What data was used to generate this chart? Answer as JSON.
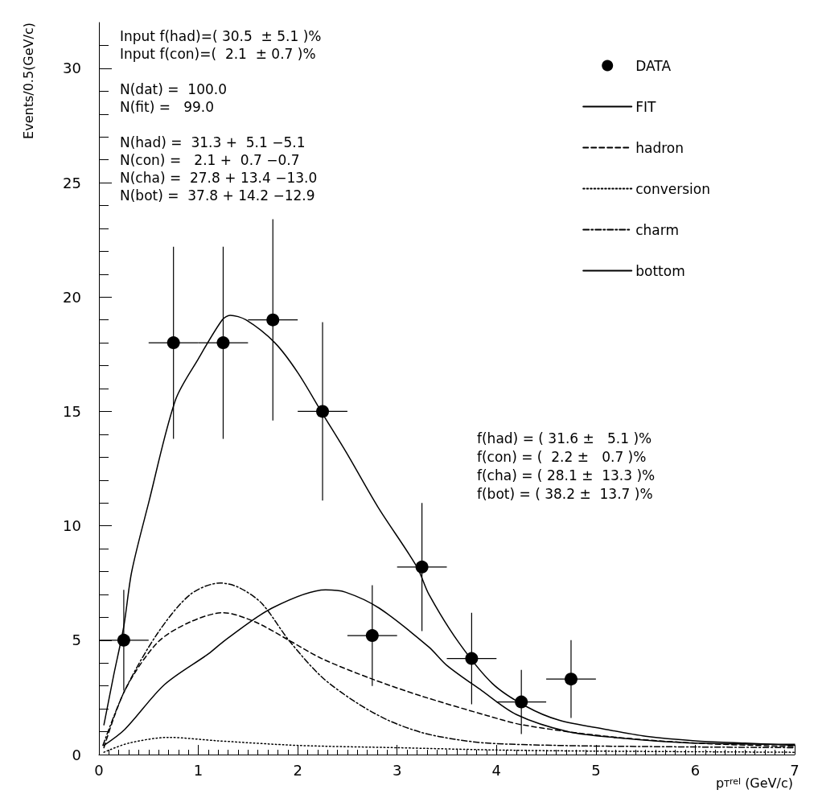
{
  "chart_data": {
    "type": "line",
    "xlabel": "p$_{T}$$^{rel}$ (GeV/c)",
    "ylabel": "Events/0.5(GeV/c)",
    "xlim": [
      0,
      7
    ],
    "xticks": [
      0,
      1,
      2,
      3,
      4,
      5,
      6,
      7
    ],
    "ylim": [
      0,
      32
    ],
    "yticks": [
      0,
      5,
      10,
      15,
      20,
      25,
      30
    ],
    "grid": false,
    "legend": "top right",
    "annotations": [
      "Input f(had)=( 30.5  ± 5.1 )%",
      "Input f(con)=(  2.1  ± 0.7 )%",
      "N(dat) =  100.0",
      "N(fit) =   99.0",
      "N(had) =  31.3 +  5.1 −5.1",
      "N(con) =   2.1 +  0.7 −0.7",
      "N(cha) =  27.8 + 13.4 −13.0",
      "N(bot) =  37.8 + 14.2 −12.9",
      "f(had) = ( 31.6 ±   5.1 )%",
      "f(con) = (  2.2 ±   0.7 )%",
      "f(cha) = ( 28.1 ±  13.3 )%",
      "f(bot) = ( 38.2 ±  13.7 )%"
    ],
    "series": [
      {
        "name": "DATA",
        "type": "scatter",
        "color": "#000000",
        "marker": "circle",
        "x": [
          0.25,
          0.75,
          1.25,
          1.75,
          2.25,
          2.75,
          3.25,
          3.75,
          4.25,
          4.75
        ],
        "values": [
          5,
          18,
          18,
          19,
          15,
          5.2,
          8.2,
          4.2,
          2.3,
          3.3
        ],
        "errors": [
          2.2,
          4.2,
          4.2,
          4.4,
          3.9,
          2.2,
          2.8,
          2.0,
          1.4,
          1.7
        ],
        "xerrors": [
          0.25,
          0.25,
          0.25,
          0.25,
          0.25,
          0.25,
          0.25,
          0.25,
          0.25,
          0.25
        ]
      },
      {
        "name": "FIT",
        "color": "#000000",
        "line_style": "solid",
        "x": [
          0.05,
          0.15,
          0.25,
          0.33,
          0.5,
          0.77,
          1.0,
          1.24,
          1.32,
          1.48,
          1.77,
          2.0,
          2.25,
          2.49,
          2.81,
          3.2,
          3.32,
          3.62,
          3.96,
          4.3,
          4.63,
          5.1,
          5.5,
          6.0,
          6.5,
          7.0
        ],
        "values": [
          1.3,
          3.5,
          5.6,
          8.0,
          11.0,
          15.5,
          17.3,
          19.0,
          19.2,
          19.0,
          18.0,
          16.7,
          14.9,
          13.2,
          10.8,
          8.2,
          7.0,
          4.9,
          3.1,
          2.1,
          1.5,
          1.1,
          0.8,
          0.6,
          0.5,
          0.4
        ]
      },
      {
        "name": "hadron",
        "color": "#000000",
        "line_style": "dashed",
        "x": [
          0.05,
          0.26,
          0.59,
          0.92,
          1.25,
          1.57,
          1.91,
          2.24,
          2.75,
          3.25,
          3.91,
          4.26,
          5.1,
          6.0,
          7.0
        ],
        "values": [
          0.3,
          2.8,
          4.9,
          5.8,
          6.2,
          5.8,
          5.0,
          4.2,
          3.3,
          2.55,
          1.7,
          1.3,
          0.8,
          0.5,
          0.35
        ]
      },
      {
        "name": "conversion",
        "color": "#000000",
        "line_style": "dotted",
        "x": [
          0.05,
          0.3,
          0.7,
          1.2,
          2.0,
          3.0,
          4.0,
          5.0,
          7.0
        ],
        "values": [
          0.1,
          0.5,
          0.75,
          0.6,
          0.4,
          0.3,
          0.2,
          0.15,
          0.1
        ]
      },
      {
        "name": "charm",
        "color": "#000000",
        "line_style": "dashdot",
        "x": [
          0.04,
          0.26,
          0.59,
          0.92,
          1.22,
          1.41,
          1.64,
          1.91,
          2.24,
          2.58,
          2.91,
          3.25,
          3.58,
          3.91,
          4.6,
          5.5,
          7.0
        ],
        "values": [
          0.4,
          2.8,
          5.3,
          7.0,
          7.5,
          7.3,
          6.6,
          5.0,
          3.4,
          2.3,
          1.5,
          0.96,
          0.67,
          0.5,
          0.4,
          0.35,
          0.3
        ]
      },
      {
        "name": "bottom",
        "color": "#000000",
        "line_style": "solid",
        "x": [
          0.05,
          0.26,
          0.66,
          1.1,
          1.27,
          1.74,
          2.28,
          2.48,
          2.82,
          3.32,
          3.5,
          3.85,
          4.2,
          4.72,
          5.2,
          6.0,
          7.0
        ],
        "values": [
          0.4,
          1.1,
          3.06,
          4.4,
          5.0,
          6.4,
          7.2,
          7.1,
          6.4,
          4.7,
          3.9,
          2.8,
          1.75,
          1.0,
          0.74,
          0.5,
          0.45
        ]
      }
    ]
  }
}
